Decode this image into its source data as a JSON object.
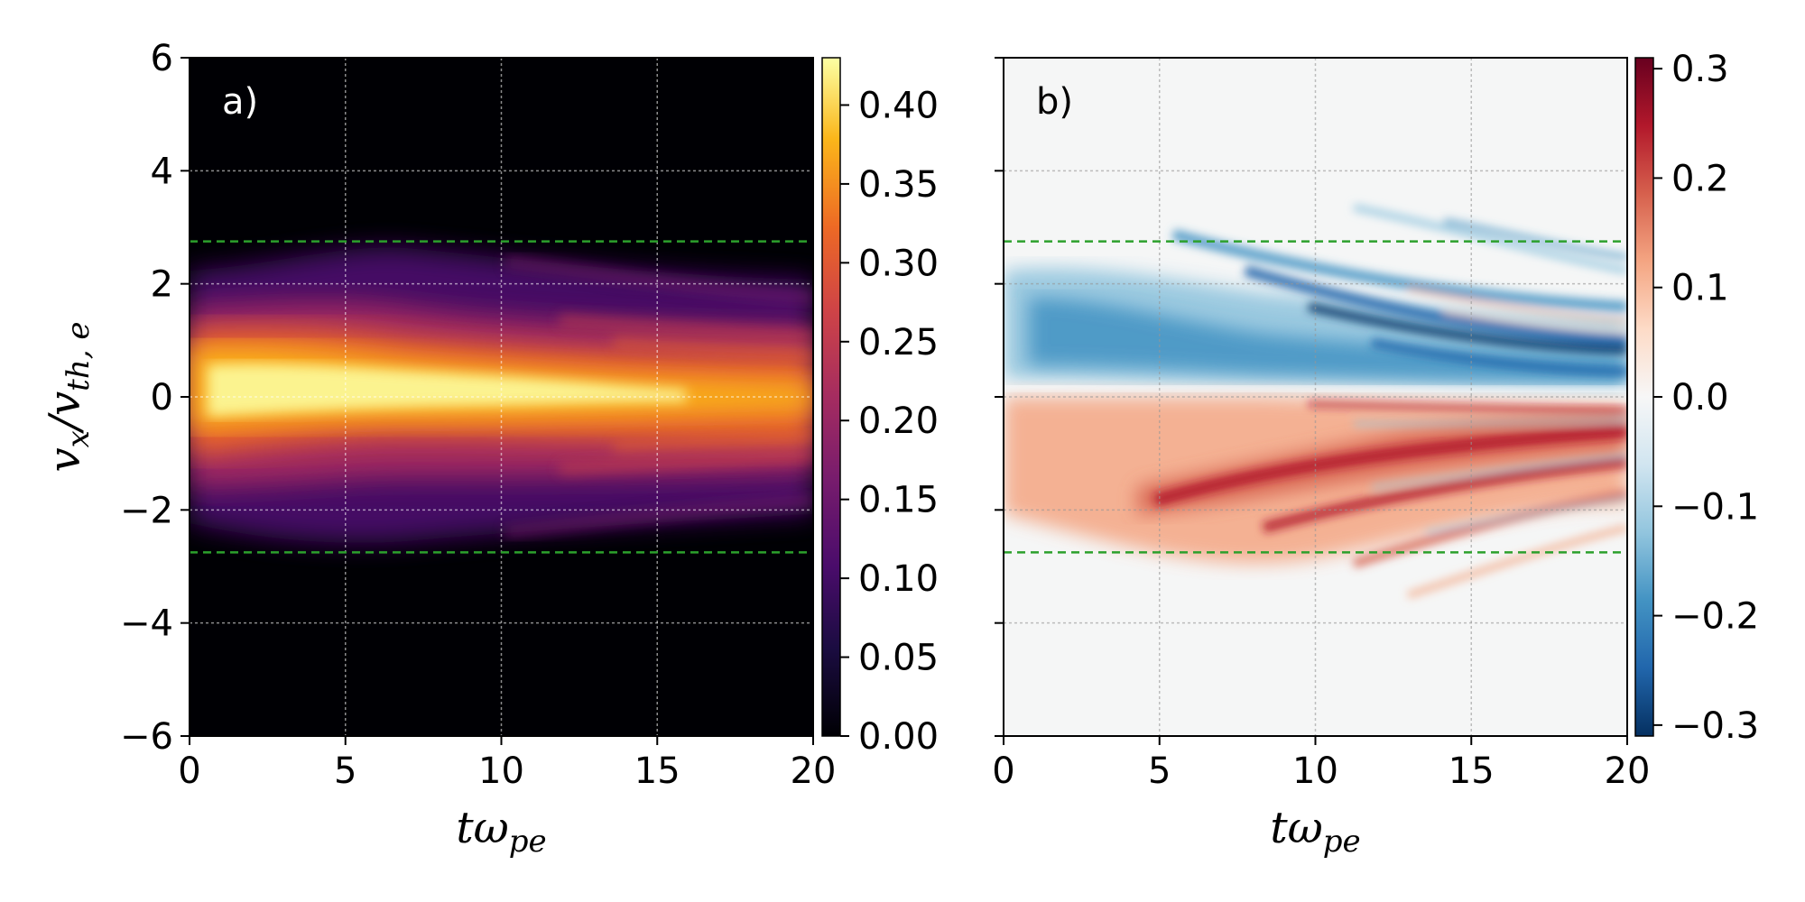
{
  "chart_data": [
    {
      "type": "heatmap",
      "panel_label": "a)",
      "xlabel_main": "tω",
      "xlabel_sub": "pe",
      "ylabel_main": "v",
      "ylabel_sub1": "x",
      "ylabel_mid": "/v",
      "ylabel_sub2": "th, e",
      "xlim": [
        0,
        20
      ],
      "ylim": [
        -6,
        6
      ],
      "xticks": [
        0,
        5,
        10,
        15,
        20
      ],
      "yticks": [
        -6,
        -4,
        -2,
        0,
        2,
        4,
        6
      ],
      "ytick_labels": [
        "−6",
        "−4",
        "−2",
        "0",
        "2",
        "4",
        "6"
      ],
      "colormap": "inferno",
      "colorbar_range": [
        0,
        0.43
      ],
      "colorbar_ticks": [
        0.0,
        0.05,
        0.1,
        0.15,
        0.2,
        0.25,
        0.3,
        0.35,
        0.4
      ],
      "colorbar_tick_labels": [
        "0.00",
        "0.05",
        "0.10",
        "0.15",
        "0.20",
        "0.25",
        "0.30",
        "0.35",
        "0.40"
      ],
      "reference_lines_y": [
        2.75,
        -2.75
      ],
      "reference_line_color": "#2ca02c",
      "grid": true,
      "panel_label_color": "#ffffff"
    },
    {
      "type": "heatmap",
      "panel_label": "b)",
      "xlabel_main": "tω",
      "xlabel_sub": "pe",
      "xlim": [
        0,
        20
      ],
      "ylim": [
        -6,
        6
      ],
      "xticks": [
        0,
        5,
        10,
        15,
        20
      ],
      "yticks": [
        -6,
        -4,
        -2,
        0,
        2,
        4,
        6
      ],
      "colormap": "RdBu_r",
      "colorbar_range": [
        -0.31,
        0.31
      ],
      "colorbar_ticks": [
        -0.3,
        -0.2,
        -0.1,
        0.0,
        0.1,
        0.2,
        0.3
      ],
      "colorbar_tick_labels": [
        "−0.3",
        "−0.2",
        "−0.1",
        "0.0",
        "0.1",
        "0.2",
        "0.3"
      ],
      "reference_lines_y": [
        2.75,
        -2.75
      ],
      "reference_line_color": "#2ca02c",
      "grid": true,
      "panel_label_color": "#000000"
    }
  ]
}
